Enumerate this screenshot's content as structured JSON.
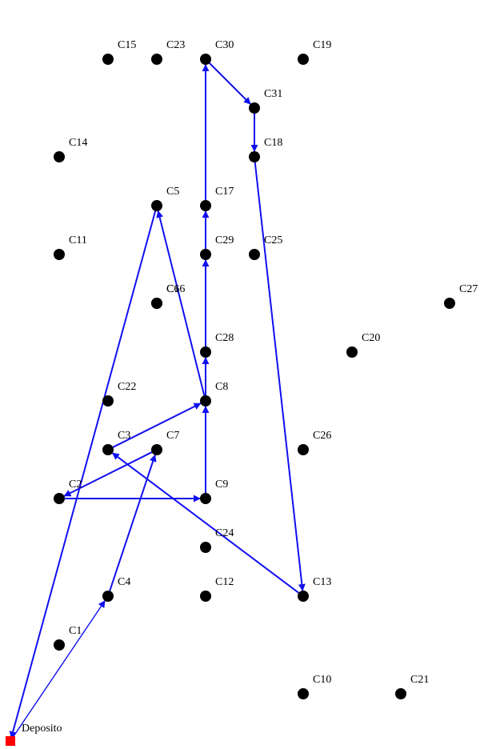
{
  "diagram": {
    "depot": {
      "id": "Deposito",
      "label": "Deposito",
      "color": "#ff0000"
    },
    "node_color": "#000000",
    "edge_color": "#1010f0",
    "customers": [
      {
        "id": "C1",
        "label": "C1"
      },
      {
        "id": "C2",
        "label": "C2"
      },
      {
        "id": "C3",
        "label": "C3"
      },
      {
        "id": "C4",
        "label": "C4"
      },
      {
        "id": "C5",
        "label": "C5"
      },
      {
        "id": "C6",
        "label": "C6"
      },
      {
        "id": "C7",
        "label": "C7"
      },
      {
        "id": "C8",
        "label": "C8"
      },
      {
        "id": "C9",
        "label": "C9"
      },
      {
        "id": "C10",
        "label": "C10"
      },
      {
        "id": "C11",
        "label": "C11"
      },
      {
        "id": "C12",
        "label": "C12"
      },
      {
        "id": "C13",
        "label": "C13"
      },
      {
        "id": "C14",
        "label": "C14"
      },
      {
        "id": "C15",
        "label": "C15"
      },
      {
        "id": "C16",
        "label": "C16"
      },
      {
        "id": "C17",
        "label": "C17"
      },
      {
        "id": "C18",
        "label": "C18"
      },
      {
        "id": "C19",
        "label": "C19"
      },
      {
        "id": "C20",
        "label": "C20"
      },
      {
        "id": "C21",
        "label": "C21"
      },
      {
        "id": "C22",
        "label": "C22"
      },
      {
        "id": "C23",
        "label": "C23"
      },
      {
        "id": "C24",
        "label": "C24"
      },
      {
        "id": "C25",
        "label": "C25"
      },
      {
        "id": "C26",
        "label": "C26"
      },
      {
        "id": "C27",
        "label": "C27"
      },
      {
        "id": "C28",
        "label": "C28"
      },
      {
        "id": "C29",
        "label": "C29"
      },
      {
        "id": "C30",
        "label": "C30"
      },
      {
        "id": "C31",
        "label": "C31"
      }
    ],
    "route": [
      "Deposito",
      "C4",
      "C7",
      "C2",
      "C9",
      "C8",
      "C28",
      "C29",
      "C17",
      "C30",
      "C31",
      "C18",
      "C13",
      "C3",
      "C8",
      "C5",
      "Deposito"
    ]
  }
}
